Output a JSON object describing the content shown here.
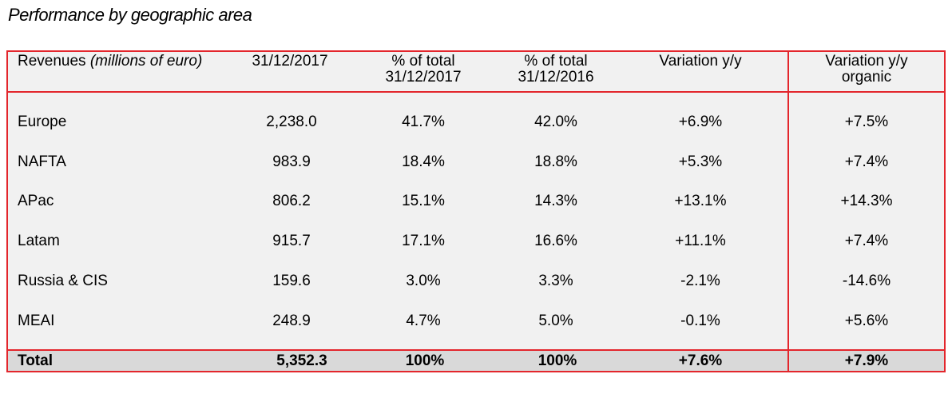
{
  "title": "Performance by geographic area",
  "header": {
    "revenues_label": "Revenues",
    "revenues_unit": "(millions of euro)",
    "col_date": "31/12/2017",
    "col_pct2017_line1": "% of total",
    "col_pct2017_line2": "31/12/2017",
    "col_pct2016_line1": "% of total",
    "col_pct2016_line2": "31/12/2016",
    "col_var": "Variation y/y",
    "col_org_line1": "Variation y/y",
    "col_org_line2": "organic"
  },
  "rows": [
    {
      "area": "Europe",
      "rev": "2,238.0",
      "pct17": "41.7%",
      "pct16": "42.0%",
      "var": "+6.9%",
      "org": "+7.5%"
    },
    {
      "area": "NAFTA",
      "rev": "983.9",
      "pct17": "18.4%",
      "pct16": "18.8%",
      "var": "+5.3%",
      "org": "+7.4%"
    },
    {
      "area": "APac",
      "rev": "806.2",
      "pct17": "15.1%",
      "pct16": "14.3%",
      "var": "+13.1%",
      "org": "+14.3%"
    },
    {
      "area": "Latam",
      "rev": "915.7",
      "pct17": "17.1%",
      "pct16": "16.6%",
      "var": "+11.1%",
      "org": "+7.4%"
    },
    {
      "area": "Russia & CIS",
      "rev": "159.6",
      "pct17": "3.0%",
      "pct16": "3.3%",
      "var": "-2.1%",
      "org": "-14.6%"
    },
    {
      "area": "MEAI",
      "rev": "248.9",
      "pct17": "4.7%",
      "pct16": "5.0%",
      "var": "-0.1%",
      "org": "+5.6%"
    }
  ],
  "total": {
    "area": "Total",
    "rev": "5,352.3",
    "pct17": "100%",
    "pct16": "100%",
    "var": "+7.6%",
    "org": "+7.9%"
  },
  "colors": {
    "border": "#e3262c",
    "body_bg": "#f1f1f1",
    "total_bg": "#d9d9d9"
  }
}
